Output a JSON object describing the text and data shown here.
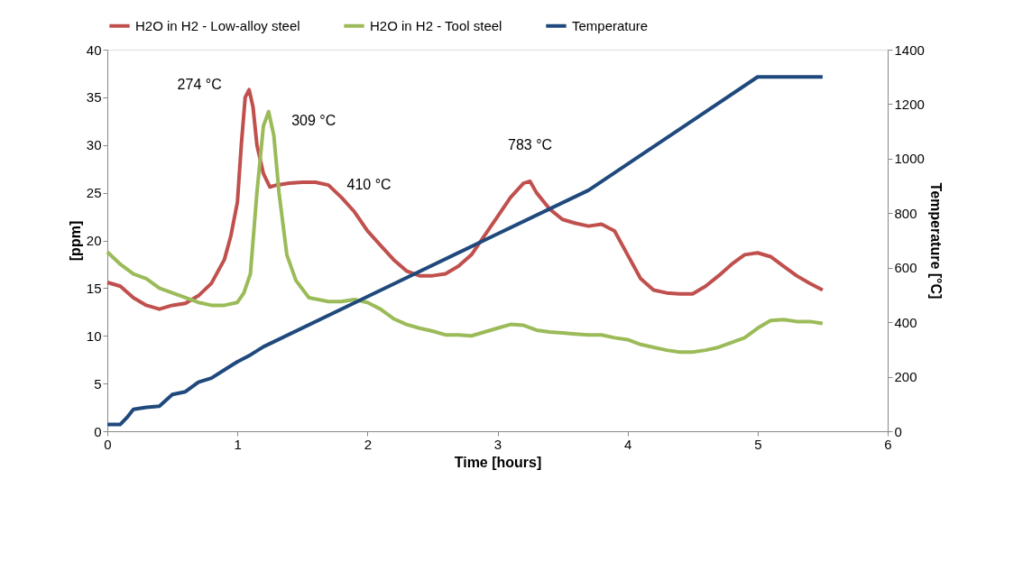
{
  "chart_data": {
    "type": "line",
    "xlabel": "Time [hours]",
    "ylabel": "[ppm]",
    "y2label": "Temperature [°C]",
    "xlim": [
      0,
      6
    ],
    "xticks": [
      0,
      1,
      2,
      3,
      4,
      5,
      6
    ],
    "ylim": [
      0,
      40
    ],
    "yticks": [
      0,
      5,
      10,
      15,
      20,
      25,
      30,
      35,
      40
    ],
    "y2lim": [
      0,
      1400
    ],
    "y2ticks": [
      0,
      200,
      400,
      600,
      800,
      1000,
      1200,
      1400
    ],
    "grid": false,
    "legend": "top",
    "marker": "none",
    "line_style": "solid",
    "series": [
      {
        "name": "H2O in H2 - Low-alloy steel",
        "color": "#c0504d",
        "x": [
          0,
          0.1,
          0.2,
          0.3,
          0.4,
          0.5,
          0.6,
          0.7,
          0.8,
          0.9,
          0.95,
          1.0,
          1.03,
          1.06,
          1.09,
          1.12,
          1.15,
          1.2,
          1.25,
          1.3,
          1.4,
          1.5,
          1.6,
          1.7,
          1.8,
          1.9,
          2.0,
          2.1,
          2.2,
          2.3,
          2.4,
          2.5,
          2.6,
          2.7,
          2.8,
          2.9,
          3.0,
          3.1,
          3.2,
          3.25,
          3.3,
          3.4,
          3.5,
          3.6,
          3.7,
          3.8,
          3.9,
          4.0,
          4.1,
          4.2,
          4.3,
          4.4,
          4.5,
          4.6,
          4.7,
          4.8,
          4.9,
          5.0,
          5.1,
          5.2,
          5.3,
          5.4,
          5.5
        ],
        "values": [
          15.6,
          15.2,
          14.0,
          13.2,
          12.8,
          13.2,
          13.4,
          14.2,
          15.5,
          18.0,
          20.5,
          24,
          30,
          35,
          35.8,
          34,
          30,
          27,
          25.6,
          25.8,
          26,
          26.1,
          26.1,
          25.8,
          24.5,
          23.0,
          21.0,
          19.5,
          18.0,
          16.8,
          16.3,
          16.3,
          16.5,
          17.3,
          18.5,
          20.5,
          22.5,
          24.5,
          26.0,
          26.2,
          25.0,
          23.3,
          22.2,
          21.8,
          21.5,
          21.7,
          21.0,
          18.5,
          16.0,
          14.8,
          14.5,
          14.4,
          14.4,
          15.2,
          16.3,
          17.5,
          18.5,
          18.7,
          18.3,
          17.3,
          16.3,
          15.5,
          14.8
        ]
      },
      {
        "name": "H2O in H2 - Tool steel",
        "color": "#9bbb59",
        "x": [
          0,
          0.1,
          0.2,
          0.3,
          0.4,
          0.5,
          0.6,
          0.7,
          0.8,
          0.9,
          1.0,
          1.05,
          1.1,
          1.15,
          1.2,
          1.24,
          1.28,
          1.32,
          1.38,
          1.45,
          1.55,
          1.7,
          1.8,
          1.9,
          2.0,
          2.1,
          2.2,
          2.3,
          2.4,
          2.5,
          2.6,
          2.7,
          2.8,
          2.9,
          3.0,
          3.1,
          3.2,
          3.3,
          3.4,
          3.5,
          3.6,
          3.7,
          3.8,
          3.9,
          4.0,
          4.1,
          4.2,
          4.3,
          4.4,
          4.5,
          4.6,
          4.7,
          4.8,
          4.9,
          5.0,
          5.1,
          5.2,
          5.3,
          5.4,
          5.5
        ],
        "values": [
          18.8,
          17.5,
          16.5,
          16.0,
          15.0,
          14.5,
          14.0,
          13.5,
          13.2,
          13.2,
          13.5,
          14.5,
          16.5,
          25,
          32,
          33.5,
          31,
          25,
          18.5,
          15.8,
          14.0,
          13.6,
          13.6,
          13.8,
          13.5,
          12.8,
          11.8,
          11.2,
          10.8,
          10.5,
          10.1,
          10.1,
          10.0,
          10.4,
          10.8,
          11.2,
          11.1,
          10.6,
          10.4,
          10.3,
          10.2,
          10.1,
          10.1,
          9.8,
          9.6,
          9.1,
          8.8,
          8.5,
          8.3,
          8.3,
          8.5,
          8.8,
          9.3,
          9.8,
          10.8,
          11.6,
          11.7,
          11.5,
          11.5,
          11.3
        ]
      },
      {
        "name": "Temperature",
        "color": "#1f497d",
        "axis": "y2",
        "x": [
          0,
          0.1,
          0.15,
          0.2,
          0.3,
          0.4,
          0.5,
          0.6,
          0.7,
          0.8,
          0.9,
          1.0,
          1.1,
          1.2,
          2.0,
          3.0,
          3.7,
          4.0,
          4.5,
          5.0,
          5.5
        ],
        "values": [
          25,
          25,
          50,
          80,
          88,
          92,
          135,
          145,
          180,
          195,
          225,
          255,
          280,
          310,
          494,
          724,
          884,
          980,
          1140,
          1300,
          1300
        ]
      }
    ],
    "annotations": [
      {
        "text": "274 °C",
        "x": 1.09,
        "y": 35.8
      },
      {
        "text": "309 °C",
        "x": 1.24,
        "y": 33.5
      },
      {
        "text": "410 °C",
        "x": 1.7,
        "y": 25.8
      },
      {
        "text": "783 °C",
        "x": 3.25,
        "y": 26.2
      }
    ]
  }
}
